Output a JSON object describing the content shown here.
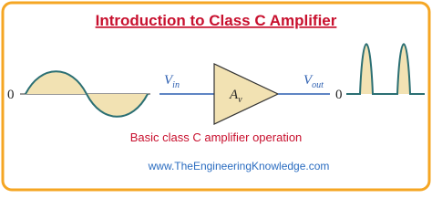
{
  "header": {
    "title": "Introduction to Class C Amplifier"
  },
  "input": {
    "zero": "0",
    "label": {
      "main": "V",
      "sub": "in"
    }
  },
  "amplifier": {
    "label": {
      "main": "A",
      "sub": "v"
    }
  },
  "output": {
    "zero": "0",
    "label": {
      "main": "V",
      "sub": "out"
    }
  },
  "caption": "Basic class C amplifier operation",
  "footer": {
    "url": "www.TheEngineeringKnowledge.com"
  }
}
